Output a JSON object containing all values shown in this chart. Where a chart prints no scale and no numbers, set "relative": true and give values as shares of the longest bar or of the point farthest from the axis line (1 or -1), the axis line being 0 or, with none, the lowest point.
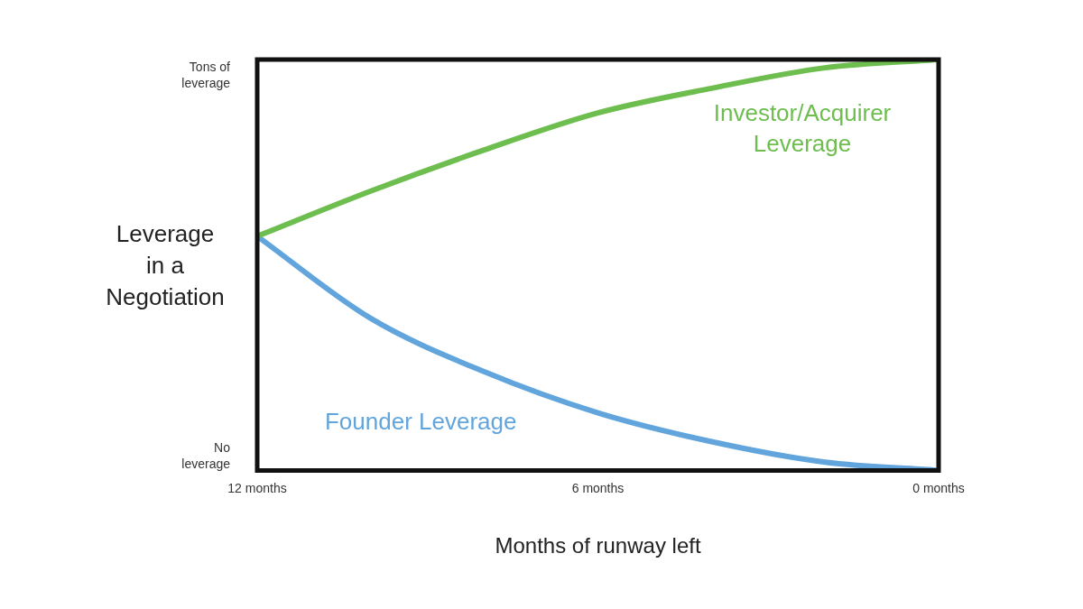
{
  "chart_data": {
    "type": "line",
    "xlabel": "Months of runway left",
    "ylabel": "Leverage in a Negotiation",
    "xlim": [
      12,
      0
    ],
    "xticks": [
      {
        "value": 12,
        "label": "12 months"
      },
      {
        "value": 6,
        "label": "6 months"
      },
      {
        "value": 0,
        "label": "0 months"
      }
    ],
    "relative": true,
    "annotations": [
      "Tons of leverage",
      "No leverage"
    ],
    "grid": false,
    "legend": false,
    "marker": "none",
    "line_style": "solid",
    "series": [
      {
        "name": "Investor/Acquirer Leverage",
        "color": "#6dbd4f",
        "x": [
          12,
          10,
          8,
          6,
          4,
          2,
          0
        ],
        "values": [
          0.57,
          0.68,
          0.78,
          0.87,
          0.93,
          0.98,
          1
        ]
      },
      {
        "name": "Founder Leverage",
        "color": "#62a5dd",
        "x": [
          12,
          10,
          8,
          6,
          4,
          2,
          0
        ],
        "values": [
          0.57,
          0.37,
          0.24,
          0.14,
          0.07,
          0.02,
          0
        ]
      }
    ]
  }
}
